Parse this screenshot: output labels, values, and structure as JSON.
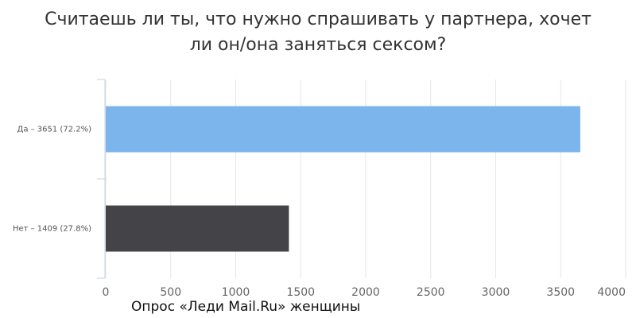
{
  "chart_data": {
    "type": "hbar",
    "title": [
      "Считаешь ли ты, что нужно спрашивать у партнера, хочет",
      "ли он/она заняться сексом?"
    ],
    "caption": "Опрос «Леди Mail.Ru» женщины",
    "categories": [
      "Да – 3651 (72.2%)",
      "Нет – 1409 (27.8%)"
    ],
    "values": [
      3651,
      1409
    ],
    "colors": [
      "#7cb5ec",
      "#434348"
    ],
    "xlim": [
      0,
      4000
    ],
    "xticks": [
      0,
      500,
      1000,
      1500,
      2000,
      2500,
      3000,
      3500,
      4000
    ],
    "grid": true
  }
}
